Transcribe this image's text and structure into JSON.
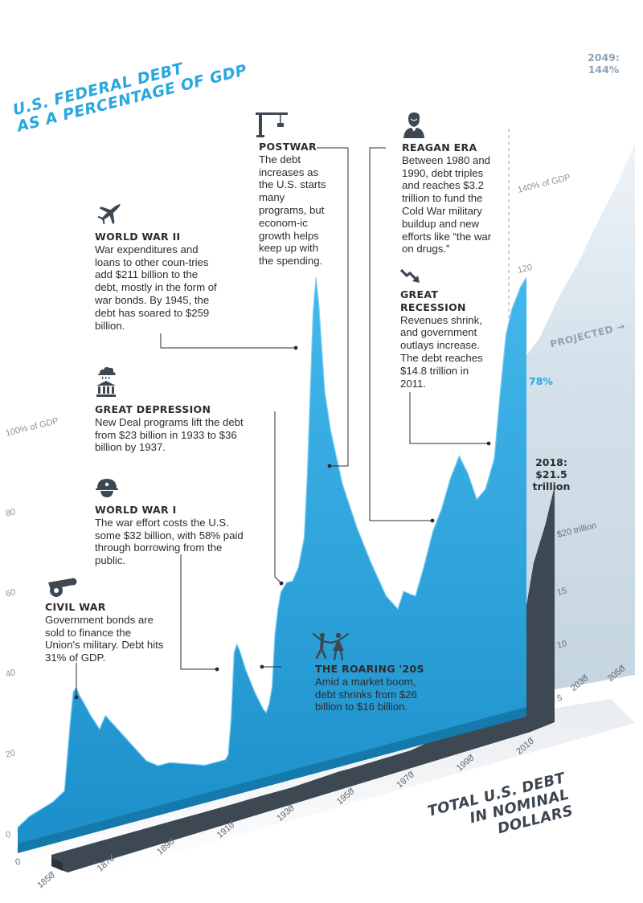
{
  "title_line1": "U.S. FEDERAL DEBT",
  "title_line2": "AS A PERCENTAGE OF GDP",
  "projected_label": "PROJECTED",
  "label_78": "78%",
  "label_2049_line1": "2049:",
  "label_2049_line2": "144%",
  "label_2018_line1": "2018:",
  "label_2018_line2": "$21.5",
  "label_2018_line3": "trillion",
  "total_line1": "TOTAL U.S. DEBT",
  "total_line2": "IN NOMINAL DOLLARS",
  "annotations": {
    "civil_war": {
      "heading": "CIVIL WAR",
      "body": "Government bonds are sold to finance the Union's military. Debt hits 31% of GDP."
    },
    "wwi": {
      "heading": "WORLD WAR I",
      "body": "The war effort costs the U.S. some $32 billion, with 58% paid through borrowing from the public."
    },
    "depression": {
      "heading": "GREAT DEPRESSION",
      "body": "New Deal programs lift the debt from $23 billion in 1933 to $36 billion by 1937."
    },
    "wwii": {
      "heading": "WORLD WAR II",
      "body": "War expenditures and loans to other coun-tries add $211 billion to the debt, mostly in the form of war bonds. By 1945, the debt has soared to $259 billion."
    },
    "postwar": {
      "heading": "POSTWAR",
      "body": "The debt increases as the U.S. starts many programs, but econom-ic growth helps keep up with the spending."
    },
    "twenties": {
      "heading": "THE ROARING '20S",
      "body": "Amid a market boom, debt shrinks from $26 billion to $16 billion."
    },
    "reagan": {
      "heading": "REAGAN ERA",
      "body": "Between 1980 and 1990, debt triples and reaches $3.2 trillion to fund the Cold War military buildup and new efforts like “the war on drugs.”"
    },
    "recession": {
      "heading": "GREAT RECESSION",
      "body": "Revenues shrink, and government outlays increase. The debt reaches $14.8 trillion in 2011."
    }
  },
  "colors": {
    "accent": "#29a6e0",
    "accent_dark": "#1679ab",
    "nominal": "#3d4852",
    "projection": "#d4e2ec",
    "text": "#2c2c2c",
    "grid": "#9aa3ab"
  },
  "chart_data": [
    {
      "type": "area",
      "title": "U.S. FEDERAL DEBT AS A PERCENTAGE OF GDP",
      "x_unit": "year",
      "y_unit": "% of GDP",
      "yticks": [
        "0",
        "20",
        "40",
        "60",
        "80",
        "100% of GDP"
      ],
      "yticks_upper": [
        "120",
        "140% of GDP"
      ],
      "xlim": [
        1844,
        2050
      ],
      "ylim": [
        0,
        145
      ],
      "series": [
        {
          "values": [
            [
              1844,
              2
            ],
            [
              1848,
              4
            ],
            [
              1852,
              5
            ],
            [
              1856,
              6
            ],
            [
              1860,
              8
            ],
            [
              1862,
              25
            ],
            [
              1863,
              32
            ],
            [
              1864,
              33
            ],
            [
              1865,
              31
            ],
            [
              1867,
              28
            ],
            [
              1869,
              25
            ],
            [
              1872,
              21
            ],
            [
              1874,
              24
            ],
            [
              1876,
              22
            ],
            [
              1880,
              18
            ],
            [
              1884,
              14
            ],
            [
              1888,
              10
            ],
            [
              1892,
              8
            ],
            [
              1896,
              8
            ],
            [
              1900,
              7
            ],
            [
              1904,
              6
            ],
            [
              1908,
              5
            ],
            [
              1912,
              5
            ],
            [
              1915,
              5
            ],
            [
              1916,
              6
            ],
            [
              1917,
              15
            ],
            [
              1918,
              31
            ],
            [
              1919,
              33
            ],
            [
              1920,
              31
            ],
            [
              1922,
              26
            ],
            [
              1925,
              20
            ],
            [
              1928,
              15
            ],
            [
              1929,
              14
            ],
            [
              1930,
              16
            ],
            [
              1931,
              20
            ],
            [
              1932,
              33
            ],
            [
              1933,
              39
            ],
            [
              1934,
              43
            ],
            [
              1936,
              45
            ],
            [
              1938,
              45
            ],
            [
              1940,
              48
            ],
            [
              1942,
              55
            ],
            [
              1943,
              70
            ],
            [
              1944,
              90
            ],
            [
              1945,
              110
            ],
            [
              1946,
              119
            ],
            [
              1947,
              112
            ],
            [
              1949,
              90
            ],
            [
              1951,
              80
            ],
            [
              1955,
              66
            ],
            [
              1960,
              54
            ],
            [
              1965,
              44
            ],
            [
              1970,
              35
            ],
            [
              1974,
              31
            ],
            [
              1976,
              35
            ],
            [
              1980,
              33
            ],
            [
              1983,
              40
            ],
            [
              1986,
              48
            ],
            [
              1989,
              53
            ],
            [
              1992,
              60
            ],
            [
              1995,
              65
            ],
            [
              1998,
              60
            ],
            [
              2001,
              53
            ],
            [
              2004,
              55
            ],
            [
              2007,
              62
            ],
            [
              2009,
              78
            ],
            [
              2011,
              92
            ],
            [
              2013,
              98
            ],
            [
              2016,
              103
            ],
            [
              2018,
              105
            ]
          ]
        },
        {
          "name": "PROJECTED",
          "values": [
            [
              2018,
              78
            ],
            [
              2025,
              88
            ],
            [
              2030,
              100
            ],
            [
              2035,
              110
            ],
            [
              2040,
              122
            ],
            [
              2045,
              133
            ],
            [
              2049,
              144
            ]
          ]
        }
      ],
      "annotations": [
        "2049: 144%",
        "78%"
      ]
    },
    {
      "type": "area",
      "title": "TOTAL U.S. DEBT IN NOMINAL DOLLARS",
      "x_unit": "year",
      "y_unit": "trillion dollars",
      "xticks": [
        "1850",
        "1870",
        "1890",
        "1910",
        "1930",
        "1950",
        "1970",
        "1990",
        "2010",
        "2030",
        "2050"
      ],
      "yticks": [
        "0",
        "5",
        "10",
        "15",
        "$20 trillion"
      ],
      "ylim": [
        0,
        21.5
      ],
      "values": [
        [
          1850,
          0.0
        ],
        [
          1870,
          0.002
        ],
        [
          1890,
          0.001
        ],
        [
          1910,
          0.001
        ],
        [
          1919,
          0.026
        ],
        [
          1930,
          0.016
        ],
        [
          1946,
          0.27
        ],
        [
          1950,
          0.26
        ],
        [
          1970,
          0.38
        ],
        [
          1980,
          0.9
        ],
        [
          1990,
          3.2
        ],
        [
          2000,
          5.7
        ],
        [
          2008,
          10.0
        ],
        [
          2011,
          14.8
        ],
        [
          2015,
          18.2
        ],
        [
          2018,
          21.5
        ]
      ],
      "annotations": [
        "2018: $21.5 trillion"
      ]
    }
  ]
}
